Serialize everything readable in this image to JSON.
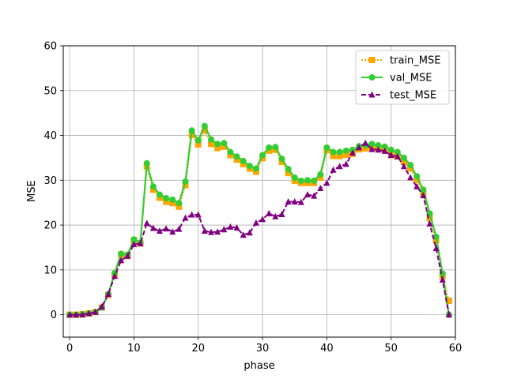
{
  "chart_data": {
    "type": "line",
    "xlabel": "phase",
    "ylabel": "MSE",
    "xlim": [
      -1,
      60
    ],
    "ylim": [
      -5,
      60
    ],
    "xticks": [
      0,
      10,
      20,
      30,
      40,
      50,
      60
    ],
    "yticks": [
      0,
      10,
      20,
      30,
      40,
      50,
      60
    ],
    "grid": true,
    "legend_position": "top-right",
    "x": [
      0,
      1,
      2,
      3,
      4,
      5,
      6,
      7,
      8,
      9,
      10,
      11,
      12,
      13,
      14,
      15,
      16,
      17,
      18,
      19,
      20,
      21,
      22,
      23,
      24,
      25,
      26,
      27,
      28,
      29,
      30,
      31,
      32,
      33,
      34,
      35,
      36,
      37,
      38,
      39,
      40,
      41,
      42,
      43,
      44,
      45,
      46,
      47,
      48,
      49,
      50,
      51,
      52,
      53,
      54,
      55,
      56,
      57,
      58,
      59
    ],
    "series": [
      {
        "name": "train_MSE",
        "color": "#ffa500",
        "marker": "square",
        "linestyle": "dotted",
        "values": [
          0.0,
          0.0,
          0.1,
          0.3,
          0.6,
          1.6,
          4.4,
          9.0,
          13.4,
          13.1,
          16.6,
          15.9,
          33.1,
          27.9,
          26.1,
          25.2,
          24.9,
          24.1,
          28.9,
          40.1,
          38.0,
          41.1,
          38.1,
          37.2,
          37.5,
          35.6,
          34.6,
          33.6,
          32.6,
          31.9,
          34.9,
          36.6,
          36.8,
          34.1,
          31.6,
          29.9,
          29.4,
          29.4,
          29.4,
          30.6,
          36.7,
          35.4,
          35.4,
          35.7,
          35.9,
          36.9,
          37.1,
          37.4,
          37.1,
          36.9,
          35.6,
          35.3,
          34.1,
          32.6,
          30.1,
          27.1,
          21.6,
          16.6,
          8.6,
          3.1
        ]
      },
      {
        "name": "val_MSE",
        "color": "#32cd32",
        "marker": "circle",
        "linestyle": "solid",
        "values": [
          0.0,
          0.0,
          0.1,
          0.3,
          0.6,
          1.6,
          4.6,
          9.3,
          13.6,
          13.4,
          16.8,
          16.1,
          33.8,
          28.6,
          26.8,
          26.0,
          25.7,
          24.9,
          29.7,
          41.1,
          38.9,
          42.1,
          39.1,
          38.1,
          38.3,
          36.3,
          35.3,
          34.3,
          33.2,
          32.6,
          35.6,
          37.3,
          37.4,
          34.8,
          32.5,
          30.6,
          29.9,
          30.0,
          29.9,
          31.3,
          37.3,
          36.3,
          36.3,
          36.6,
          36.8,
          37.6,
          37.8,
          38.1,
          37.8,
          37.5,
          36.8,
          36.3,
          35.0,
          33.4,
          30.9,
          27.9,
          22.6,
          17.4,
          9.2,
          0.0
        ]
      },
      {
        "name": "test_MSE",
        "color": "#800080",
        "marker": "triangle",
        "linestyle": "dashed",
        "values": [
          0.0,
          0.0,
          0.0,
          0.3,
          0.6,
          1.8,
          4.6,
          8.6,
          12.1,
          13.1,
          15.7,
          15.9,
          20.4,
          19.3,
          18.7,
          19.2,
          18.5,
          19.1,
          21.6,
          22.3,
          22.3,
          18.7,
          18.4,
          18.5,
          19.0,
          19.6,
          19.4,
          17.8,
          18.3,
          20.5,
          21.3,
          22.6,
          21.9,
          22.4,
          25.2,
          25.2,
          25.1,
          26.8,
          26.5,
          28.2,
          29.4,
          32.3,
          33.1,
          33.6,
          36.1,
          37.3,
          38.3,
          36.9,
          36.8,
          36.5,
          35.6,
          35.3,
          33.1,
          30.6,
          28.6,
          26.6,
          20.3,
          14.8,
          7.8,
          0.0
        ]
      }
    ]
  }
}
